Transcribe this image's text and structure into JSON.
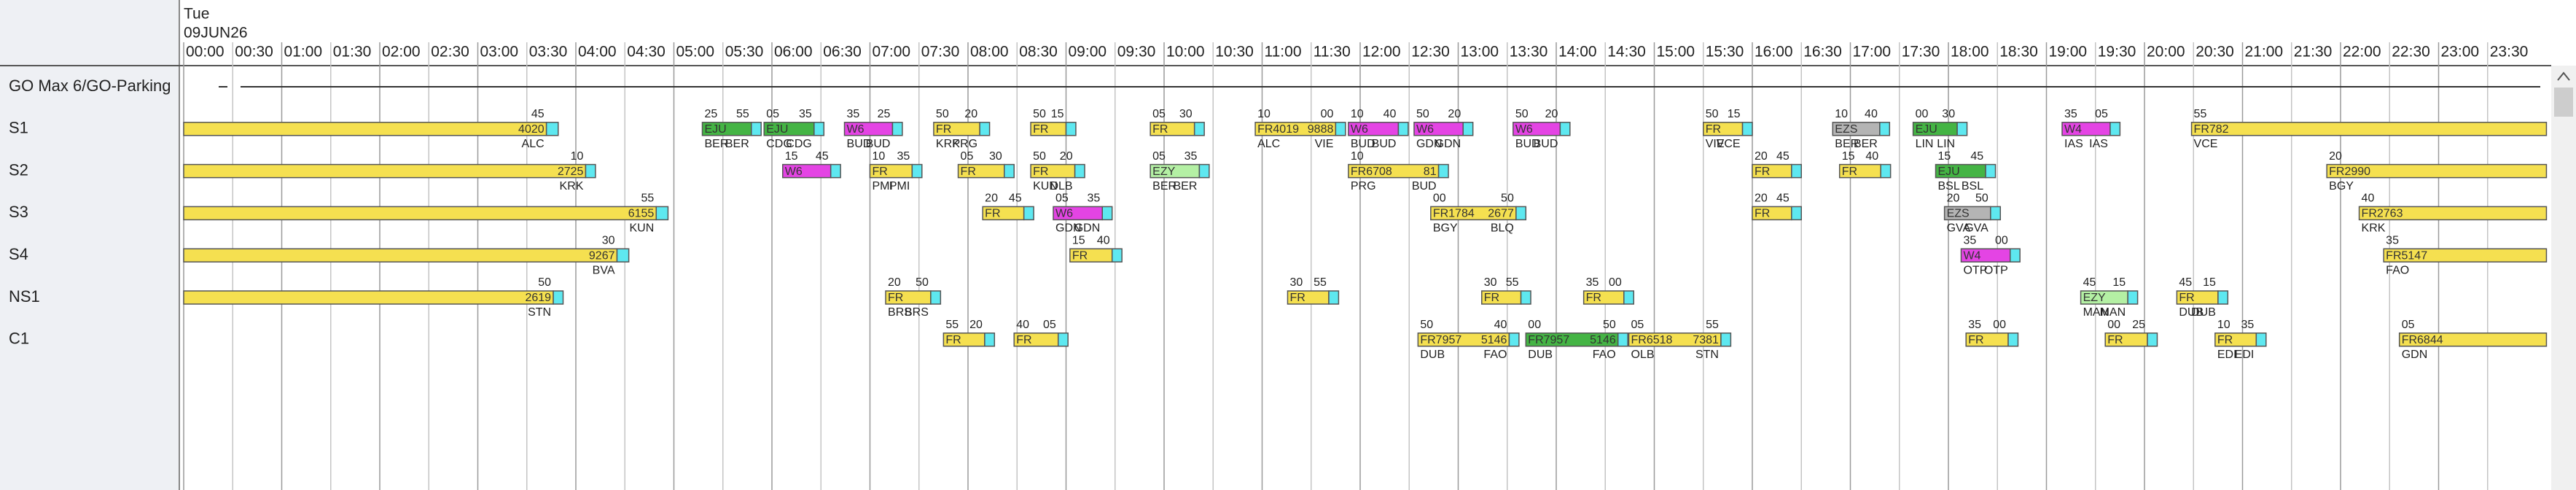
{
  "header": {
    "day": "Tue",
    "date": "09JUN26",
    "times": [
      "00:00",
      "00:30",
      "01:00",
      "01:30",
      "02:00",
      "02:30",
      "03:00",
      "03:30",
      "04:00",
      "04:30",
      "05:00",
      "05:30",
      "06:00",
      "06:30",
      "07:00",
      "07:30",
      "08:00",
      "08:30",
      "09:00",
      "09:30",
      "10:00",
      "10:30",
      "11:00",
      "11:30",
      "12:00",
      "12:30",
      "13:00",
      "13:30",
      "14:00",
      "14:30",
      "15:00",
      "15:30",
      "16:00",
      "16:30",
      "17:00",
      "17:30",
      "18:00",
      "18:30",
      "19:00",
      "19:30",
      "20:00",
      "20:30",
      "21:00",
      "21:30",
      "22:00",
      "22:30",
      "23:00",
      "23:30"
    ]
  },
  "rows": [
    {
      "label": "GO Max 6/GO-Parking"
    },
    {
      "label": "S1",
      "flights": [
        {
          "color": "#f5e050",
          "top": [
            "45"
          ],
          "text": [
            "4020"
          ],
          "below": [
            "ALC"
          ]
        },
        {
          "color": "#44b444",
          "top": [
            "25",
            "55"
          ],
          "text": [
            "EJU"
          ],
          "below": [
            "BER",
            "BER"
          ]
        },
        {
          "color": "#44b444",
          "top": [
            "05",
            "35"
          ],
          "text": [
            "EJU"
          ],
          "below": [
            "CDG",
            "CDG"
          ]
        },
        {
          "color": "#e444e4",
          "top": [
            "35",
            "25"
          ],
          "text": [
            "W6"
          ],
          "below": [
            "BUD",
            "BUD"
          ]
        },
        {
          "color": "#f5e050",
          "top": [
            "50",
            "20"
          ],
          "text": [
            "FR"
          ],
          "below": [
            "KRK",
            "PRG"
          ]
        },
        {
          "color": "#f5e050",
          "top": [
            "50",
            "15"
          ],
          "text": [
            "FR"
          ]
        },
        {
          "color": "#f5e050",
          "top": [
            "05",
            "30"
          ],
          "text": [
            "FR"
          ]
        },
        {
          "color": "#f5e050",
          "top": [
            "10",
            "00"
          ],
          "text": [
            "FR4019",
            "9888"
          ],
          "below": [
            "ALC",
            "VIE"
          ]
        },
        {
          "color": "#e444e4",
          "top": [
            "10",
            "40"
          ],
          "text": [
            "W6"
          ],
          "below": [
            "BUD",
            "BUD"
          ]
        },
        {
          "color": "#e444e4",
          "top": [
            "50",
            "20"
          ],
          "text": [
            "W6"
          ],
          "below": [
            "GDN",
            "GDN"
          ]
        },
        {
          "color": "#e444e4",
          "top": [
            "50",
            "20"
          ],
          "text": [
            "W6"
          ],
          "below": [
            "BUD",
            "BUD"
          ]
        },
        {
          "color": "#f5e050",
          "top": [
            "50",
            "15"
          ],
          "text": [
            "FR"
          ],
          "below": [
            "VIE",
            "VCE"
          ]
        },
        {
          "color": "#b4b4b4",
          "top": [
            "10",
            "40"
          ],
          "text": [
            "EZS"
          ],
          "below": [
            "BER",
            "BER"
          ]
        },
        {
          "color": "#44b444",
          "top": [
            "00",
            "30"
          ],
          "text": [
            "EJU"
          ],
          "below": [
            "LIN",
            "LIN"
          ]
        },
        {
          "color": "#e444e4",
          "top": [
            "35",
            "05"
          ],
          "text": [
            "W4"
          ],
          "below": [
            "IAS",
            "IAS"
          ]
        },
        {
          "color": "#f5e050",
          "top": [
            "55"
          ],
          "text": [
            "FR782"
          ],
          "below": [
            "VCE"
          ]
        }
      ]
    },
    {
      "label": "S2",
      "flights": [
        {
          "color": "#f5e050",
          "top": [
            "10"
          ],
          "text": [
            "2725"
          ],
          "below": [
            "KRK"
          ]
        },
        {
          "color": "#e444e4",
          "top": [
            "15",
            "45"
          ],
          "text": [
            "W6"
          ]
        },
        {
          "color": "#f5e050",
          "top": [
            "10",
            "35"
          ],
          "text": [
            "FR"
          ],
          "below": [
            "PMI",
            "PMI"
          ]
        },
        {
          "color": "#f5e050",
          "top": [
            "05",
            "30"
          ],
          "text": [
            "FR"
          ]
        },
        {
          "color": "#f5e050",
          "top": [
            "50",
            "20"
          ],
          "text": [
            "FR"
          ],
          "below": [
            "KUN",
            "DLB"
          ]
        },
        {
          "color": "#b4f0a4",
          "top": [
            "05",
            "35"
          ],
          "text": [
            "EZY"
          ],
          "below": [
            "BER",
            "BER"
          ]
        },
        {
          "color": "#f5e050",
          "top": [
            "10"
          ],
          "text": [
            "FR6708",
            "81"
          ],
          "below": [
            "PRG",
            "BUD"
          ]
        },
        {
          "color": "#f5e050",
          "top": [
            "20",
            "45"
          ],
          "text": [
            "FR"
          ]
        },
        {
          "color": "#f5e050",
          "top": [
            "15",
            "40"
          ],
          "text": [
            "FR"
          ]
        },
        {
          "color": "#44b444",
          "top": [
            "15",
            "45"
          ],
          "text": [
            "EJU"
          ],
          "below": [
            "BSL",
            "BSL"
          ]
        },
        {
          "color": "#f5e050",
          "top": [
            "20"
          ],
          "text": [
            "FR2990"
          ],
          "below": [
            "BGY"
          ]
        }
      ]
    },
    {
      "label": "S3",
      "flights": [
        {
          "color": "#f5e050",
          "top": [
            "55"
          ],
          "text": [
            "6155"
          ],
          "below": [
            "KUN"
          ]
        },
        {
          "color": "#f5e050",
          "top": [
            "20",
            "45"
          ],
          "text": [
            "FR"
          ]
        },
        {
          "color": "#e444e4",
          "top": [
            "05",
            "35"
          ],
          "text": [
            "W6"
          ],
          "below": [
            "GDN",
            "GDN"
          ]
        },
        {
          "color": "#f5e050",
          "top": [
            "00",
            "50"
          ],
          "text": [
            "FR1784",
            "2677"
          ],
          "below": [
            "BGY",
            "BLQ"
          ]
        },
        {
          "color": "#f5e050",
          "top": [
            "20",
            "45"
          ],
          "text": [
            "FR"
          ]
        },
        {
          "color": "#b4b4b4",
          "top": [
            "20",
            "50"
          ],
          "text": [
            "EZS"
          ],
          "below": [
            "GVA",
            "GVA"
          ]
        },
        {
          "color": "#f5e050",
          "top": [
            "40"
          ],
          "text": [
            "FR2763"
          ],
          "below": [
            "KRK"
          ]
        }
      ]
    },
    {
      "label": "S4",
      "flights": [
        {
          "color": "#f5e050",
          "top": [
            "30"
          ],
          "text": [
            "9267"
          ],
          "below": [
            "BVA"
          ]
        },
        {
          "color": "#f5e050",
          "top": [
            "15",
            "40"
          ],
          "text": [
            "FR"
          ]
        },
        {
          "color": "#e444e4",
          "top": [
            "35",
            "00"
          ],
          "text": [
            "W4"
          ],
          "below": [
            "OTP",
            "OTP"
          ]
        },
        {
          "color": "#f5e050",
          "top": [
            "35"
          ],
          "text": [
            "FR5147"
          ],
          "below": [
            "FAO"
          ]
        }
      ]
    },
    {
      "label": "NS1",
      "flights": [
        {
          "color": "#f5e050",
          "top": [
            "50"
          ],
          "text": [
            "2619"
          ],
          "below": [
            "STN"
          ]
        },
        {
          "color": "#f5e050",
          "top": [
            "20",
            "50"
          ],
          "text": [
            "FR"
          ],
          "below": [
            "BRS",
            "BRS"
          ]
        },
        {
          "color": "#f5e050",
          "top": [
            "30",
            "55"
          ],
          "text": [
            "FR"
          ]
        },
        {
          "color": "#f5e050",
          "top": [
            "30",
            "55"
          ],
          "text": [
            "FR"
          ]
        },
        {
          "color": "#f5e050",
          "top": [
            "35",
            "00"
          ],
          "text": [
            "FR"
          ]
        },
        {
          "color": "#b4f0a4",
          "top": [
            "45",
            "15"
          ],
          "text": [
            "EZY"
          ],
          "below": [
            "MAN",
            "MAN"
          ]
        },
        {
          "color": "#f5e050",
          "top": [
            "45",
            "15"
          ],
          "text": [
            "FR"
          ],
          "below": [
            "DUB",
            "DUB"
          ]
        }
      ]
    },
    {
      "label": "C1",
      "flights": [
        {
          "color": "#f5e050",
          "top": [
            "55",
            "20"
          ],
          "text": [
            "FR"
          ]
        },
        {
          "color": "#f5e050",
          "top": [
            "40",
            "05"
          ],
          "text": [
            "FR"
          ]
        },
        {
          "color": "#f5e050",
          "top": [
            "50",
            "40"
          ],
          "text": [
            "FR7957",
            "5146"
          ],
          "below": [
            "DUB",
            "FAO"
          ]
        },
        {
          "color": "#44b444",
          "top": [
            "00",
            "50"
          ],
          "text": [
            "FR7957",
            "5146"
          ],
          "below": [
            "DUB",
            "FAO"
          ]
        },
        {
          "color": "#f5e050",
          "top": [
            "05",
            "55"
          ],
          "text": [
            "FR6518",
            "7381"
          ],
          "below": [
            "OLB",
            "STN"
          ]
        },
        {
          "color": "#f5e050",
          "top": [
            "35",
            "00"
          ],
          "text": [
            "FR"
          ]
        },
        {
          "color": "#f5e050",
          "top": [
            "00",
            "25"
          ],
          "text": [
            "FR"
          ]
        },
        {
          "color": "#f5e050",
          "top": [
            "10",
            "35"
          ],
          "text": [
            "FR"
          ],
          "below": [
            "EDI",
            "EDI"
          ]
        },
        {
          "color": "#f5e050",
          "top": [
            "05"
          ],
          "text": [
            "FR6844"
          ],
          "below": [
            "GDN"
          ]
        }
      ]
    }
  ]
}
